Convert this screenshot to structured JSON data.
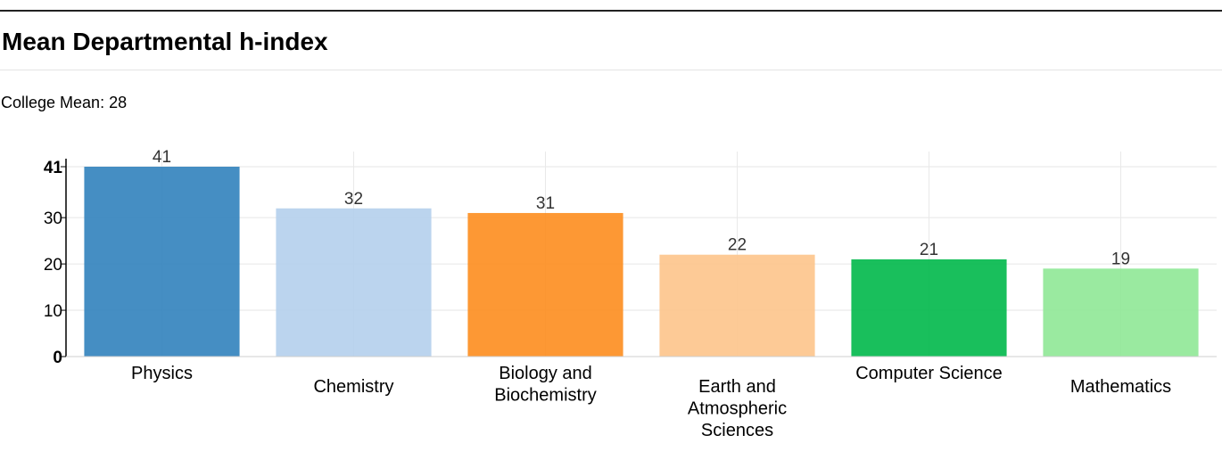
{
  "header": {
    "title": "Mean Departmental h-index"
  },
  "summary": {
    "label": "College Mean:",
    "value": "28"
  },
  "chart_data": {
    "type": "bar",
    "title": "Mean Departmental h-index",
    "xlabel": "",
    "ylabel": "",
    "categories": [
      "Physics",
      "Chemistry",
      "Biology and Biochemistry",
      "Earth and Atmospheric Sciences",
      "Computer Science",
      "Mathematics"
    ],
    "category_lines": [
      [
        "Physics"
      ],
      [
        "Chemistry"
      ],
      [
        "Biology and",
        "Biochemistry"
      ],
      [
        "Earth and",
        "Atmospheric",
        "Sciences"
      ],
      [
        "Computer Science"
      ],
      [
        "Mathematics"
      ]
    ],
    "values": [
      41,
      32,
      31,
      22,
      21,
      19
    ],
    "colors": [
      "#3182bd",
      "#b4cfec",
      "#fd8d1e",
      "#fdc48b",
      "#00b84a",
      "#8fe896"
    ],
    "ylim": [
      0,
      41
    ],
    "yticks": [
      0,
      10,
      20,
      30,
      41
    ],
    "grid": true,
    "legend": "none"
  }
}
